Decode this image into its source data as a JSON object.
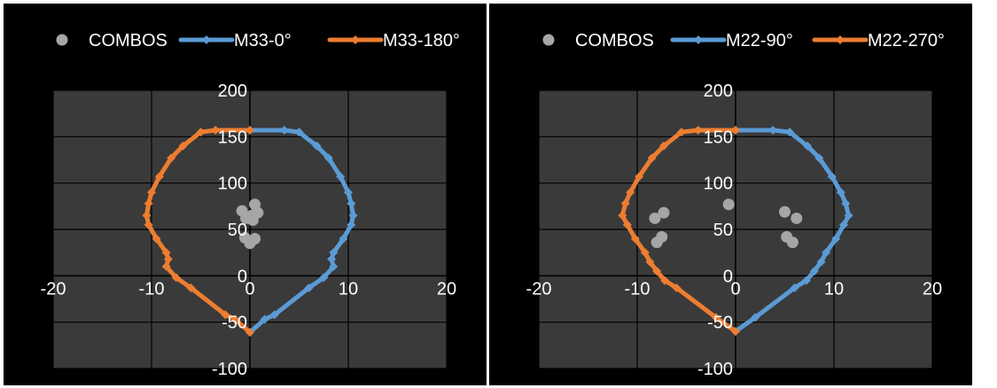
{
  "colors": {
    "background": "#000000",
    "plot_area": "#3a3a3a",
    "gridline": "#000000",
    "combos": "#a6a6a6",
    "series_blue": "#5b9bd5",
    "series_orange": "#ed7d31",
    "text": "#ffffff"
  },
  "chart_data": [
    {
      "type": "scatter",
      "title": "",
      "xlabel": "",
      "ylabel": "",
      "xlim": [
        -20,
        20
      ],
      "ylim": [
        -100,
        200
      ],
      "x_ticks": [
        "-20",
        "-10",
        "0",
        "10",
        "20"
      ],
      "y_ticks": [
        "200",
        "150",
        "100",
        "50",
        "0",
        "-50",
        "-100"
      ],
      "grid": "on",
      "legend_position": "top",
      "series": [
        {
          "name": "COMBOS",
          "kind": "points",
          "color": "#a6a6a6",
          "points": [
            [
              0.5,
              77
            ],
            [
              -0.8,
              70
            ],
            [
              0.2,
              65
            ],
            [
              0.8,
              68
            ],
            [
              -0.4,
              62
            ],
            [
              0.3,
              60
            ],
            [
              -0.5,
              41
            ],
            [
              0.5,
              40
            ],
            [
              0,
              35
            ]
          ]
        },
        {
          "name": "M33-0°",
          "kind": "line",
          "color": "#5b9bd5",
          "points": [
            [
              0,
              157
            ],
            [
              3.5,
              157
            ],
            [
              5,
              155
            ],
            [
              6.8,
              140
            ],
            [
              8,
              127
            ],
            [
              9.2,
              107
            ],
            [
              10,
              90
            ],
            [
              10.3,
              78
            ],
            [
              10.5,
              65
            ],
            [
              10.3,
              55
            ],
            [
              9.5,
              40
            ],
            [
              8.5,
              25
            ],
            [
              8.3,
              18
            ],
            [
              8.5,
              10
            ],
            [
              7.5,
              -2
            ],
            [
              6,
              -13
            ],
            [
              2.5,
              -42
            ],
            [
              1.5,
              -47
            ],
            [
              0,
              -61
            ]
          ]
        },
        {
          "name": "M33-180°",
          "kind": "line",
          "color": "#ed7d31",
          "points": [
            [
              0,
              157
            ],
            [
              -3.5,
              157
            ],
            [
              -5,
              155
            ],
            [
              -6.8,
              140
            ],
            [
              -8,
              127
            ],
            [
              -9.2,
              107
            ],
            [
              -10,
              90
            ],
            [
              -10.3,
              78
            ],
            [
              -10.5,
              65
            ],
            [
              -10.3,
              55
            ],
            [
              -9.5,
              40
            ],
            [
              -8.5,
              25
            ],
            [
              -8.3,
              18
            ],
            [
              -8.5,
              10
            ],
            [
              -7.5,
              -2
            ],
            [
              -6,
              -13
            ],
            [
              -2.5,
              -42
            ],
            [
              -1.5,
              -47
            ],
            [
              0,
              -61
            ]
          ]
        }
      ]
    },
    {
      "type": "scatter",
      "title": "",
      "xlabel": "",
      "ylabel": "",
      "xlim": [
        -20,
        20
      ],
      "ylim": [
        -100,
        200
      ],
      "x_ticks": [
        "-20",
        "-10",
        "0",
        "10",
        "20"
      ],
      "y_ticks": [
        "200",
        "150",
        "100",
        "50",
        "0",
        "-50",
        "-100"
      ],
      "grid": "on",
      "legend_position": "top",
      "series": [
        {
          "name": "COMBOS",
          "kind": "points",
          "color": "#a6a6a6",
          "points": [
            [
              -0.7,
              77
            ],
            [
              -7.3,
              68
            ],
            [
              -8.2,
              62
            ],
            [
              -7.5,
              42
            ],
            [
              -8,
              36
            ],
            [
              5,
              69
            ],
            [
              6.2,
              62
            ],
            [
              5.2,
              42
            ],
            [
              5.8,
              36
            ]
          ]
        },
        {
          "name": "M22-90°",
          "kind": "line",
          "color": "#5b9bd5",
          "points": [
            [
              0,
              157
            ],
            [
              3.8,
              157
            ],
            [
              5.5,
              155
            ],
            [
              7.3,
              140
            ],
            [
              8.5,
              127
            ],
            [
              9.8,
              107
            ],
            [
              10.7,
              90
            ],
            [
              11.2,
              78
            ],
            [
              11.5,
              65
            ],
            [
              11,
              55
            ],
            [
              10.2,
              40
            ],
            [
              9.2,
              25
            ],
            [
              8.7,
              15
            ],
            [
              8,
              5
            ],
            [
              7.2,
              -5
            ],
            [
              6,
              -13
            ],
            [
              2,
              -45
            ],
            [
              0,
              -60
            ]
          ]
        },
        {
          "name": "M22-270°",
          "kind": "line",
          "color": "#ed7d31",
          "points": [
            [
              0,
              157
            ],
            [
              -3.8,
              157
            ],
            [
              -5.5,
              155
            ],
            [
              -7.3,
              140
            ],
            [
              -8.5,
              127
            ],
            [
              -9.8,
              107
            ],
            [
              -10.7,
              90
            ],
            [
              -11.2,
              78
            ],
            [
              -11.5,
              65
            ],
            [
              -11,
              55
            ],
            [
              -10.2,
              40
            ],
            [
              -9.2,
              25
            ],
            [
              -8.7,
              15
            ],
            [
              -8,
              5
            ],
            [
              -7.2,
              -5
            ],
            [
              -6,
              -13
            ],
            [
              -2,
              -45
            ],
            [
              0,
              -60
            ]
          ]
        }
      ]
    }
  ]
}
